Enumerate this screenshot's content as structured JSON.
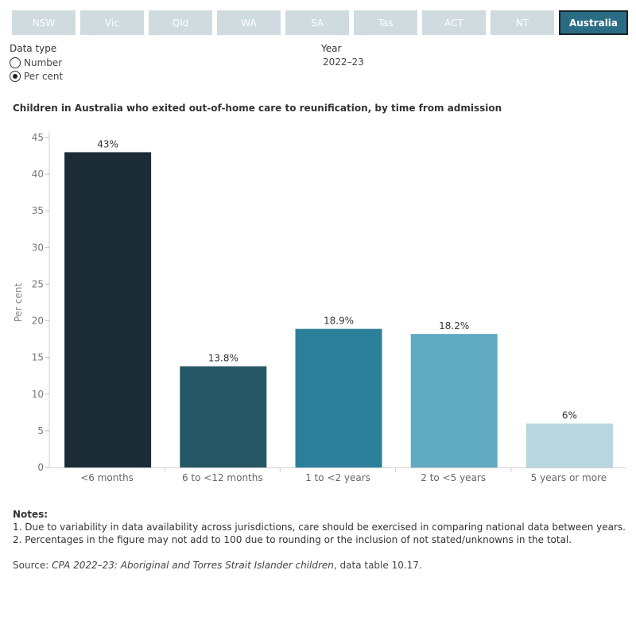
{
  "tabs": [
    {
      "label": "NSW",
      "active": false
    },
    {
      "label": "Vic",
      "active": false
    },
    {
      "label": "Qld",
      "active": false
    },
    {
      "label": "WA",
      "active": false
    },
    {
      "label": "SA",
      "active": false
    },
    {
      "label": "Tas",
      "active": false
    },
    {
      "label": "ACT",
      "active": false
    },
    {
      "label": "NT",
      "active": false
    },
    {
      "label": "Australia",
      "active": true
    }
  ],
  "filters": {
    "data_type_label": "Data type",
    "options": [
      {
        "label": "Number",
        "selected": false
      },
      {
        "label": "Per cent",
        "selected": true
      }
    ],
    "year_label": "Year",
    "year_value": "2022–23"
  },
  "chart_data": {
    "type": "bar",
    "title": "Children in Australia who exited out-of-home care to reunification, by time from admission",
    "xlabel": "",
    "ylabel": "Per cent",
    "ylim": [
      0,
      45
    ],
    "yticks": [
      0,
      5,
      10,
      15,
      20,
      25,
      30,
      35,
      40,
      45
    ],
    "grid": false,
    "categories": [
      "<6 months",
      "6 to <12 months",
      "1 to <2 years",
      "2 to <5 years",
      "5 years or more"
    ],
    "values": [
      43,
      13.8,
      18.9,
      18.2,
      6
    ],
    "data_labels": [
      "43%",
      "13.8%",
      "18.9%",
      "18.2%",
      "6%"
    ],
    "colors": [
      "#1b2c36",
      "#265766",
      "#2b7f9a",
      "#5fa9c1",
      "#b7d6df"
    ]
  },
  "notes": {
    "title": "Notes:",
    "items": [
      "1. Due to variability in data availability across jurisdictions, care should be exercised in comparing national data between years.",
      "2. Percentages in the figure may not add to 100 due to rounding or the inclusion of not stated/unknowns in the total."
    ]
  },
  "source": {
    "prefix": "Source: ",
    "title": "CPA 2022–23: Aboriginal and Torres Strait Islander children",
    "suffix": ", data table 10.17."
  }
}
